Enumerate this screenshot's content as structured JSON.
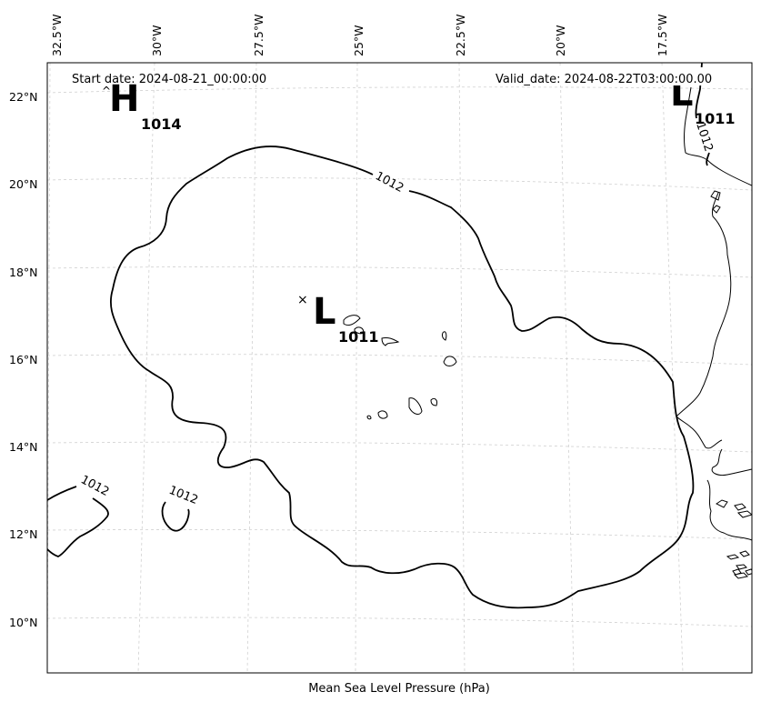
{
  "header": {
    "start_date": "Start date: 2024-08-21_00:00:00",
    "valid_date": "Valid_date: 2024-08-22T03:00:00.00"
  },
  "caption": "Mean Sea Level Pressure (hPa)",
  "longitude_labels": [
    "32.5°W",
    "30°W",
    "27.5°W",
    "25°W",
    "22.5°W",
    "20°W",
    "17.5°W"
  ],
  "latitude_labels": [
    "22°N",
    "20°N",
    "18°N",
    "16°N",
    "14°N",
    "12°N",
    "10°N"
  ],
  "pressure_centers": [
    {
      "type": "H",
      "value": "1014"
    },
    {
      "type": "L",
      "value": "1011"
    },
    {
      "type": "L",
      "value": "1011"
    }
  ],
  "contour_labels": [
    "1012",
    "1012",
    "1012",
    "1012"
  ],
  "colors": {
    "contour": "#000000",
    "gridline": "#d0d0d0",
    "coastline": "#000000",
    "background": "#ffffff"
  }
}
